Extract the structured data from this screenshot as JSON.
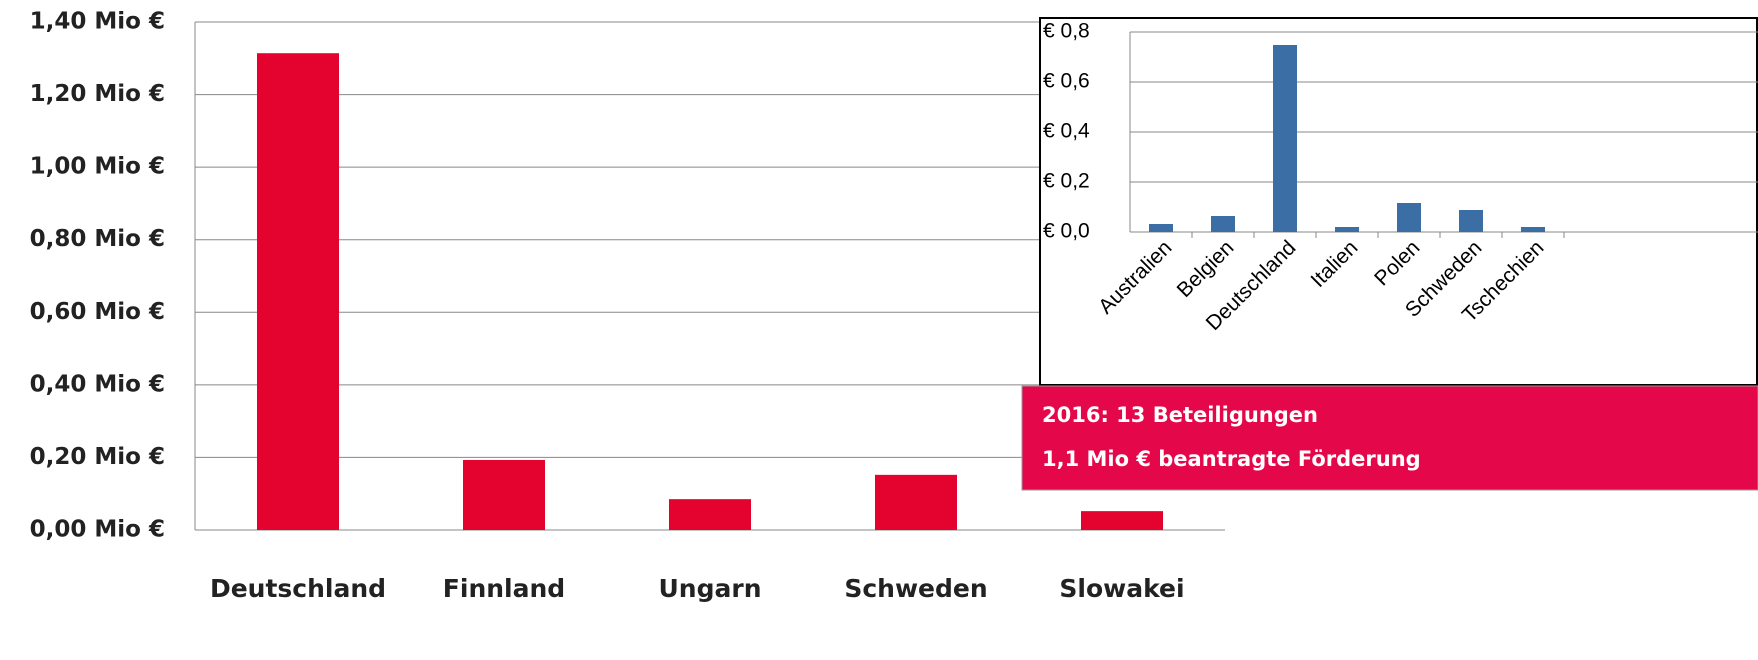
{
  "chart_data": [
    {
      "type": "bar",
      "categories": [
        "Deutschland",
        "Finnland",
        "Ungarn",
        "Schweden",
        "Slowakei"
      ],
      "values": [
        1.314,
        0.193,
        0.085,
        0.152,
        0.052
      ],
      "color": "#e4032e",
      "ylim": [
        0,
        1.4
      ],
      "yticks": [
        {
          "value": 0,
          "label": "0,00 Mio €"
        },
        {
          "value": 0.2,
          "label": "0,20 Mio €"
        },
        {
          "value": 0.4,
          "label": "0,40 Mio €"
        },
        {
          "value": 0.6,
          "label": "0,60 Mio €"
        },
        {
          "value": 0.8,
          "label": "0,80 Mio €"
        },
        {
          "value": 1.0,
          "label": "1,00 Mio €"
        },
        {
          "value": 1.2,
          "label": "1,20 Mio €"
        },
        {
          "value": 1.4,
          "label": "1,40 Mio €"
        }
      ],
      "grid": true
    },
    {
      "type": "bar",
      "categories": [
        "Australien",
        "Belgien",
        "Deutschland",
        "Italien",
        "Polen",
        "Schweden",
        "Tschechien"
      ],
      "values": [
        0.032,
        0.064,
        0.748,
        0.02,
        0.116,
        0.088,
        0.02
      ],
      "color": "#3a6ea5",
      "ylim": [
        0,
        0.8
      ],
      "yticks": [
        {
          "value": 0,
          "label": "€ 0,0"
        },
        {
          "value": 0.2,
          "label": "€ 0,2"
        },
        {
          "value": 0.4,
          "label": "€ 0,4"
        },
        {
          "value": 0.6,
          "label": "€ 0,6"
        },
        {
          "value": 0.8,
          "label": "€ 0,8"
        }
      ],
      "grid": true,
      "annotations": [
        "2016: 13 Beteiligungen",
        "1,1 Mio € beantragte Förderung"
      ]
    }
  ]
}
